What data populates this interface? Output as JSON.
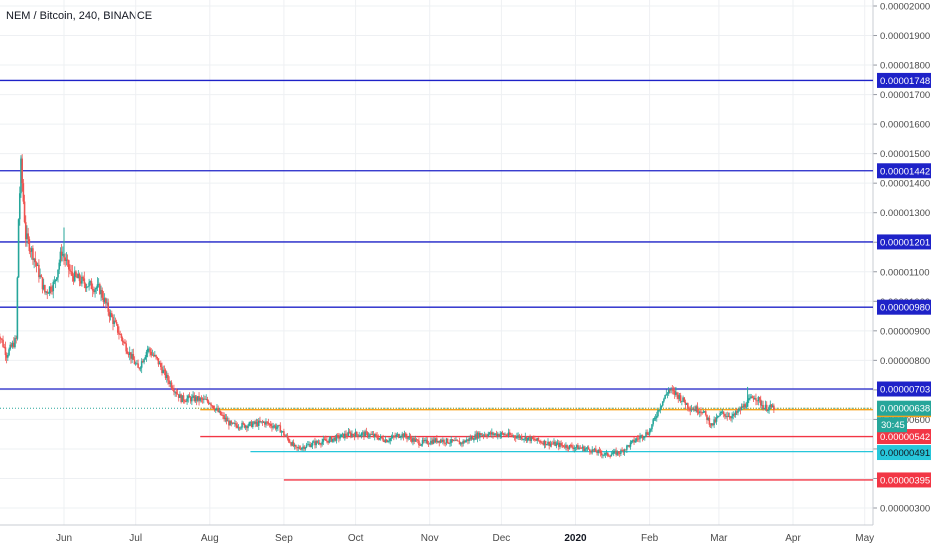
{
  "chart_data": {
    "type": "candlestick",
    "title": "NEM / Bitcoin, 240, BINANCE",
    "ylim": [
      2.8e-06,
      2.1e-06
    ],
    "y_ticks": [
      "0.00002000",
      "0.00001900",
      "0.00001800",
      "0.00001700",
      "0.00001600",
      "0.00001500",
      "0.00001400",
      "0.00001300",
      "0.00001200",
      "0.00001100",
      "0.00001000",
      "0.00000900",
      "0.00000800",
      "0.00000700",
      "0.00000600",
      "0.00000500",
      "0.00000400",
      "0.00000300"
    ],
    "x_ticks": [
      {
        "label": "Jun",
        "date": "2019-06-01"
      },
      {
        "label": "Jul",
        "date": "2019-07-01"
      },
      {
        "label": "Aug",
        "date": "2019-08-01"
      },
      {
        "label": "Sep",
        "date": "2019-09-01"
      },
      {
        "label": "Oct",
        "date": "2019-10-01"
      },
      {
        "label": "Nov",
        "date": "2019-11-01"
      },
      {
        "label": "Dec",
        "date": "2019-12-01"
      },
      {
        "label": "2020",
        "date": "2020-01-01"
      },
      {
        "label": "Feb",
        "date": "2020-02-01"
      },
      {
        "label": "Mar",
        "date": "2020-03-01"
      },
      {
        "label": "Apr",
        "date": "2020-04-01"
      },
      {
        "label": "May",
        "date": "2020-05-01"
      }
    ],
    "x_range": [
      "2019-05-04",
      "2020-05-10"
    ],
    "price_path": [
      [
        "2019-05-04",
        9.1e-06
      ],
      [
        "2019-05-08",
        8.2e-06
      ],
      [
        "2019-05-12",
        8.7e-06
      ],
      [
        "2019-05-13",
        1.28e-05
      ],
      [
        "2019-05-14",
        1.46e-05
      ],
      [
        "2019-05-16",
        1.22e-05
      ],
      [
        "2019-05-19",
        1.16e-05
      ],
      [
        "2019-05-24",
        1.03e-05
      ],
      [
        "2019-05-28",
        1.06e-05
      ],
      [
        "2019-05-31",
        1.17e-05
      ],
      [
        "2019-06-04",
        1.09e-05
      ],
      [
        "2019-06-10",
        1.06e-05
      ],
      [
        "2019-06-16",
        1.04e-05
      ],
      [
        "2019-06-20",
        9.6e-06
      ],
      [
        "2019-06-26",
        8.6e-06
      ],
      [
        "2019-07-02",
        7.7e-06
      ],
      [
        "2019-07-06",
        8.4e-06
      ],
      [
        "2019-07-10",
        8e-06
      ],
      [
        "2019-07-14",
        7.4e-06
      ],
      [
        "2019-07-20",
        6.7e-06
      ],
      [
        "2019-07-26",
        6.7e-06
      ],
      [
        "2019-08-01",
        6.6e-06
      ],
      [
        "2019-08-05",
        6.2e-06
      ],
      [
        "2019-08-10",
        5.8e-06
      ],
      [
        "2019-08-16",
        5.8e-06
      ],
      [
        "2019-08-24",
        5.9e-06
      ],
      [
        "2019-08-30",
        5.7e-06
      ],
      [
        "2019-09-06",
        5e-06
      ],
      [
        "2019-09-14",
        5.2e-06
      ],
      [
        "2019-09-20",
        5.3e-06
      ],
      [
        "2019-09-28",
        5.5e-06
      ],
      [
        "2019-10-06",
        5.5e-06
      ],
      [
        "2019-10-14",
        5.3e-06
      ],
      [
        "2019-10-20",
        5.5e-06
      ],
      [
        "2019-10-28",
        5.2e-06
      ],
      [
        "2019-11-05",
        5.3e-06
      ],
      [
        "2019-11-14",
        5.2e-06
      ],
      [
        "2019-11-22",
        5.5e-06
      ],
      [
        "2019-12-01",
        5.5e-06
      ],
      [
        "2019-12-10",
        5.4e-06
      ],
      [
        "2019-12-20",
        5.2e-06
      ],
      [
        "2019-12-28",
        5.1e-06
      ],
      [
        "2020-01-06",
        5e-06
      ],
      [
        "2020-01-14",
        4.8e-06
      ],
      [
        "2020-01-20",
        4.9e-06
      ],
      [
        "2020-01-26",
        5.3e-06
      ],
      [
        "2020-02-01",
        5.6e-06
      ],
      [
        "2020-02-05",
        6.4e-06
      ],
      [
        "2020-02-09",
        7e-06
      ],
      [
        "2020-02-13",
        6.8e-06
      ],
      [
        "2020-02-18",
        6.4e-06
      ],
      [
        "2020-02-23",
        6.3e-06
      ],
      [
        "2020-02-27",
        5.8e-06
      ],
      [
        "2020-03-02",
        6.2e-06
      ],
      [
        "2020-03-07",
        6.1e-06
      ],
      [
        "2020-03-12",
        6.5e-06
      ],
      [
        "2020-03-16",
        6.8e-06
      ],
      [
        "2020-03-20",
        6.4e-06
      ],
      [
        "2020-03-24",
        6.4e-06
      ]
    ],
    "spikes": [
      {
        "date": "2019-05-14",
        "high": 1.49e-05
      },
      {
        "date": "2019-06-01",
        "high": 1.25e-05
      },
      {
        "date": "2019-02-12",
        "high": 7.1e-06
      },
      {
        "date": "2020-02-12",
        "high": 7.1e-06
      },
      {
        "date": "2020-03-13",
        "high": 7.1e-06
      }
    ],
    "hlines": [
      {
        "value": 1.748e-05,
        "label": "0.00001748",
        "color": "#1e22c8",
        "start": "2019-05-04"
      },
      {
        "value": 1.442e-05,
        "label": "0.00001442",
        "color": "#1e22c8",
        "start": "2019-05-04"
      },
      {
        "value": 1.201e-05,
        "label": "0.00001201",
        "color": "#1e22c8",
        "start": "2019-05-04"
      },
      {
        "value": 9.8e-06,
        "label": "0.00000980",
        "color": "#1e22c8",
        "start": "2019-05-04"
      },
      {
        "value": 7.03e-06,
        "label": "0.00000703",
        "color": "#1e22c8",
        "start": "2019-05-04"
      },
      {
        "value": 6.33e-06,
        "label": "0.00000633",
        "color": "#f7a21b",
        "start": "2019-07-28"
      },
      {
        "value": 5.42e-06,
        "label": "0.00000542",
        "color": "#f23645",
        "start": "2019-07-28"
      },
      {
        "value": 4.91e-06,
        "label": "0.00000491",
        "color": "#26c6da",
        "start": "2019-08-18"
      },
      {
        "value": 3.95e-06,
        "label": "0.00000395",
        "color": "#f23645",
        "start": "2019-09-01"
      }
    ],
    "last_price": {
      "value": 6.38e-06,
      "label": "0.00000638",
      "timer": "30:45",
      "color": "#26a69a"
    },
    "colors": {
      "up": "#26a69a",
      "down": "#ef5350",
      "grid": "#eef0f3",
      "axis_text": "#4a4a4a"
    }
  }
}
